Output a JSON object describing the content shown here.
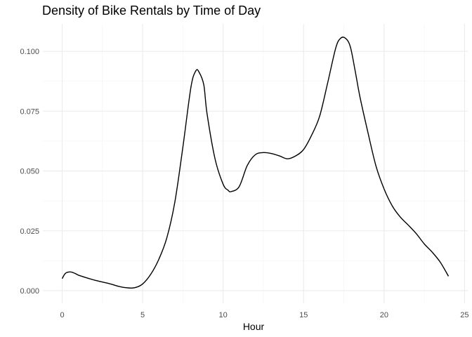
{
  "chart_data": {
    "type": "line",
    "title": "Density of Bike Rentals by Time of Day",
    "xlabel": "Hour",
    "ylabel": "",
    "xlim": [
      -1.2,
      25.2
    ],
    "ylim": [
      -0.0053,
      0.1115
    ],
    "x_ticks": [
      0,
      5,
      10,
      15,
      20,
      25
    ],
    "x_tick_labels": [
      "0",
      "5",
      "10",
      "15",
      "20",
      "25"
    ],
    "y_ticks": [
      0.0,
      0.025,
      0.05,
      0.075,
      0.1
    ],
    "y_tick_labels": [
      "0.000",
      "0.025",
      "0.050",
      "0.075",
      "0.100"
    ],
    "x_minor_ticks": [
      2.5,
      7.5,
      12.5,
      17.5,
      22.5
    ],
    "y_minor_ticks": [
      0.0125,
      0.0375,
      0.0625,
      0.0875
    ],
    "grid": true,
    "line_color": "#000000",
    "series": [
      {
        "x": [
          0,
          0.2,
          0.5,
          0.8,
          1.0,
          1.5,
          2.0,
          2.5,
          3.0,
          3.5,
          4.0,
          4.5,
          5.0,
          5.5,
          6.0,
          6.5,
          7.0,
          7.5,
          8.0,
          8.3,
          8.5,
          8.8,
          9.0,
          9.5,
          10.0,
          10.3,
          10.5,
          11.0,
          11.5,
          12.0,
          12.5,
          13.0,
          13.5,
          14.0,
          14.5,
          15.0,
          15.5,
          16.0,
          16.5,
          17.0,
          17.3,
          17.6,
          17.9,
          18.2,
          18.5,
          19.0,
          19.5,
          20.0,
          20.5,
          21.0,
          21.5,
          22.0,
          22.5,
          23.0,
          23.5,
          24.0
        ],
        "y": [
          0.005,
          0.0072,
          0.0078,
          0.0072,
          0.0065,
          0.0054,
          0.0044,
          0.0036,
          0.0028,
          0.0018,
          0.0012,
          0.0012,
          0.0028,
          0.0068,
          0.013,
          0.022,
          0.037,
          0.06,
          0.085,
          0.0918,
          0.0914,
          0.086,
          0.074,
          0.055,
          0.0445,
          0.042,
          0.0414,
          0.0435,
          0.0523,
          0.0568,
          0.0577,
          0.0573,
          0.0563,
          0.0551,
          0.0563,
          0.059,
          0.065,
          0.073,
          0.087,
          0.1015,
          0.1055,
          0.1055,
          0.102,
          0.092,
          0.081,
          0.066,
          0.052,
          0.0425,
          0.0355,
          0.0308,
          0.0274,
          0.0238,
          0.0195,
          0.016,
          0.0118,
          0.006
        ]
      }
    ]
  }
}
